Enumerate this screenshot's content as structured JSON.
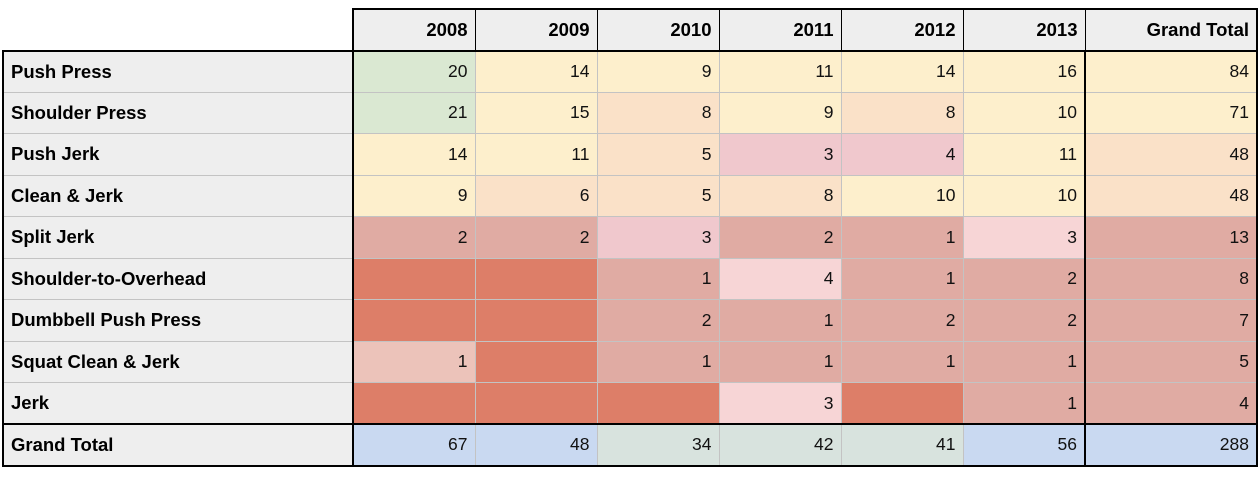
{
  "palette": {
    "green": "#dae8d2",
    "cream": "#fdefcc",
    "peach": "#fae1c8",
    "pink": "#f0c8cd",
    "pinkLight": "#f7d5d6",
    "rose": "#e0aba3",
    "roseLight": "#ecc3ba",
    "salmon": "#dd7e68",
    "blue": "#c9d9f1",
    "grayGreen": "#d8e3de",
    "headerBg": "#eeeeee",
    "gridline": "#c3c3c3",
    "frame": "#000000"
  },
  "table": {
    "corner_label": "",
    "columns": [
      "2008",
      "2009",
      "2010",
      "2011",
      "2012",
      "2013",
      "Grand Total"
    ],
    "rows": [
      {
        "label": "Push Press",
        "values": [
          "20",
          "14",
          "9",
          "11",
          "14",
          "16",
          "84"
        ],
        "colors": [
          "green",
          "cream",
          "cream",
          "cream",
          "cream",
          "cream",
          "cream"
        ]
      },
      {
        "label": "Shoulder Press",
        "values": [
          "21",
          "15",
          "8",
          "9",
          "8",
          "10",
          "71"
        ],
        "colors": [
          "green",
          "cream",
          "peach",
          "cream",
          "peach",
          "cream",
          "cream"
        ]
      },
      {
        "label": "Push Jerk",
        "values": [
          "14",
          "11",
          "5",
          "3",
          "4",
          "11",
          "48"
        ],
        "colors": [
          "cream",
          "cream",
          "peach",
          "pink",
          "pink",
          "cream",
          "peach"
        ]
      },
      {
        "label": "Clean & Jerk",
        "values": [
          "9",
          "6",
          "5",
          "8",
          "10",
          "10",
          "48"
        ],
        "colors": [
          "cream",
          "peach",
          "peach",
          "peach",
          "cream",
          "cream",
          "peach"
        ]
      },
      {
        "label": "Split Jerk",
        "values": [
          "2",
          "2",
          "3",
          "2",
          "1",
          "3",
          "13"
        ],
        "colors": [
          "rose",
          "rose",
          "pink",
          "rose",
          "rose",
          "pinkLight",
          "rose"
        ]
      },
      {
        "label": "Shoulder-to-Overhead",
        "values": [
          "",
          "",
          "1",
          "4",
          "1",
          "2",
          "8"
        ],
        "colors": [
          "salmon",
          "salmon",
          "rose",
          "pinkLight",
          "rose",
          "rose",
          "rose"
        ]
      },
      {
        "label": "Dumbbell Push Press",
        "values": [
          "",
          "",
          "2",
          "1",
          "2",
          "2",
          "7"
        ],
        "colors": [
          "salmon",
          "salmon",
          "rose",
          "rose",
          "rose",
          "rose",
          "rose"
        ]
      },
      {
        "label": "Squat Clean & Jerk",
        "values": [
          "1",
          "",
          "1",
          "1",
          "1",
          "1",
          "5"
        ],
        "colors": [
          "roseLight",
          "salmon",
          "rose",
          "rose",
          "rose",
          "rose",
          "rose"
        ]
      },
      {
        "label": "Jerk",
        "values": [
          "",
          "",
          "",
          "3",
          "",
          "1",
          "4"
        ],
        "colors": [
          "salmon",
          "salmon",
          "salmon",
          "pinkLight",
          "salmon",
          "rose",
          "rose"
        ]
      }
    ],
    "grand_total_row": {
      "label": "Grand Total",
      "values": [
        "67",
        "48",
        "34",
        "42",
        "41",
        "56",
        "288"
      ],
      "colors": [
        "blue",
        "blue",
        "grayGreen",
        "grayGreen",
        "grayGreen",
        "blue",
        "blue"
      ]
    }
  },
  "chart_data": {
    "type": "table",
    "columns": [
      "2008",
      "2009",
      "2010",
      "2011",
      "2012",
      "2013",
      "Grand Total"
    ],
    "row_labels": [
      "Push Press",
      "Shoulder Press",
      "Push Jerk",
      "Clean & Jerk",
      "Split Jerk",
      "Shoulder-to-Overhead",
      "Dumbbell Push Press",
      "Squat Clean & Jerk",
      "Jerk",
      "Grand Total"
    ],
    "matrix": [
      [
        20,
        14,
        9,
        11,
        14,
        16,
        84
      ],
      [
        21,
        15,
        8,
        9,
        8,
        10,
        71
      ],
      [
        14,
        11,
        5,
        3,
        4,
        11,
        48
      ],
      [
        9,
        6,
        5,
        8,
        10,
        10,
        48
      ],
      [
        2,
        2,
        3,
        2,
        1,
        3,
        13
      ],
      [
        null,
        null,
        1,
        4,
        1,
        2,
        8
      ],
      [
        null,
        null,
        2,
        1,
        2,
        2,
        7
      ],
      [
        1,
        null,
        1,
        1,
        1,
        1,
        5
      ],
      [
        null,
        null,
        null,
        3,
        null,
        1,
        4
      ],
      [
        67,
        48,
        34,
        42,
        41,
        56,
        288
      ]
    ],
    "legend_position": "none",
    "grid": true
  }
}
